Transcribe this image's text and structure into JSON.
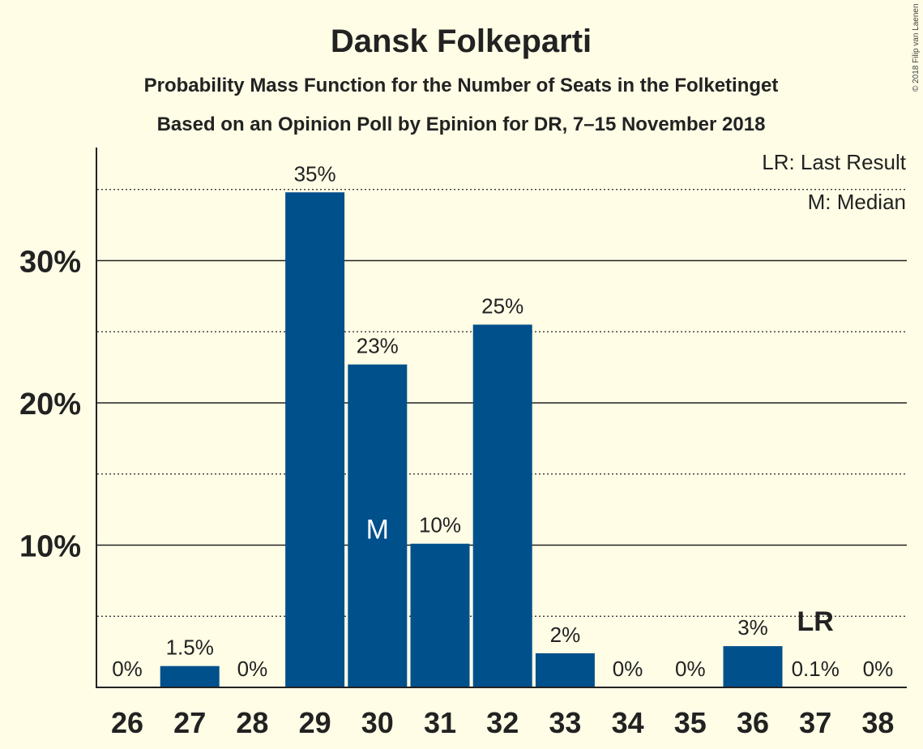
{
  "chart_data": {
    "type": "bar",
    "title": "Dansk Folkeparti",
    "subtitle1": "Probability Mass Function for the Number of Seats in the Folketinget",
    "subtitle2": "Based on an Opinion Poll by Epinion for DR, 7–15 November 2018",
    "copyright": "© 2018 Filip van Laenen",
    "legend": {
      "lr": "LR: Last Result",
      "m": "M: Median",
      "placement": "top-right"
    },
    "xlabel": "",
    "ylabel": "",
    "categories": [
      "26",
      "27",
      "28",
      "29",
      "30",
      "31",
      "32",
      "33",
      "34",
      "35",
      "36",
      "37",
      "38"
    ],
    "values": [
      0,
      1.5,
      0,
      34.8,
      22.7,
      10.1,
      25.5,
      2.4,
      0,
      0,
      2.9,
      0.1,
      0
    ],
    "data_labels": [
      "0%",
      "1.5%",
      "0%",
      "35%",
      "23%",
      "10%",
      "25%",
      "2%",
      "0%",
      "0%",
      "3%",
      "0.1%",
      "0%"
    ],
    "median_category": "30",
    "median_marker": "M",
    "last_result_category": "37",
    "last_result_marker": "LR",
    "ylim": [
      0,
      38
    ],
    "yticks_major": [
      10,
      20,
      30
    ],
    "ytick_labels": [
      "10%",
      "20%",
      "30%"
    ],
    "yticks_minor": [
      5,
      15,
      25,
      35
    ],
    "colors": {
      "bar": "#00508C",
      "background": "#FFFDE6",
      "text": "#222222"
    }
  }
}
